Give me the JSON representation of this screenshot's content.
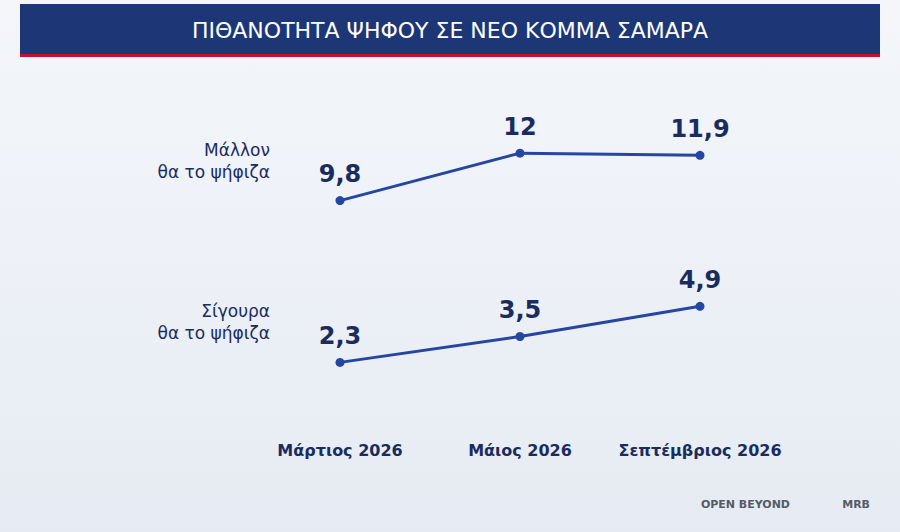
{
  "chart_data": {
    "type": "line",
    "title": "ΠΙΘΑΝΟΤΗΤΑ ΨΗΦΟΥ ΣΕ ΝΕΟ ΚΟΜΜΑ ΣΑΜΑΡΑ",
    "categories": [
      "Μάρτιος 2026",
      "Μάιος 2026",
      "Σεπτέμβριος 2026"
    ],
    "series": [
      {
        "name": "Μάλλον θα το ψήφιζα",
        "color": "#2546a3",
        "values": [
          9.8,
          12,
          11.9
        ],
        "value_labels": [
          "9,8",
          "12",
          "11,9"
        ]
      },
      {
        "name": "Σίγουρα θα το ψήφιζα",
        "color": "#2546a3",
        "values": [
          2.3,
          3.5,
          4.9
        ],
        "value_labels": [
          "2,3",
          "3,5",
          "4,9"
        ]
      }
    ],
    "ylim": [
      0,
      14
    ],
    "grid": false,
    "data_labels": true,
    "tick_labels": "x",
    "marker": "circle",
    "annotations": [
      "OPEN BEYOND",
      "MRB"
    ]
  }
}
